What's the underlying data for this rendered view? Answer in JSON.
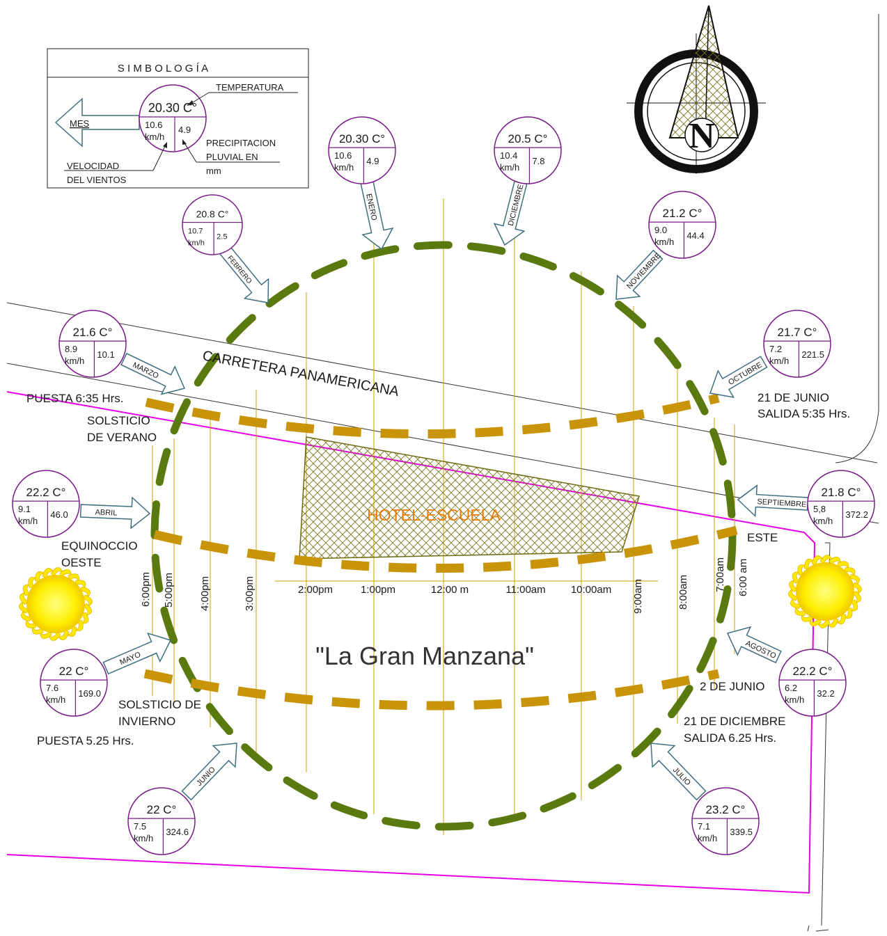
{
  "legend": {
    "title": "S I M B O L O G Í A",
    "temperature_label": "TEMPERATURA",
    "month_label": "MES",
    "precip_label_1": "PRECIPITACION",
    "precip_label_2": "PLUVIAL EN",
    "precip_label_3": "mm",
    "wind_label_1": "VELOCIDAD",
    "wind_label_2": "DEL VIENTOS",
    "sample": {
      "temp": "20.30 C°",
      "wind": "10.6",
      "unit": "km/h",
      "precip": "4.9"
    }
  },
  "months": [
    {
      "name": "ENERO",
      "temp": "20.30 C°",
      "wind": "10.6",
      "unit": "km/h",
      "precip": "4.9"
    },
    {
      "name": "DICIEMBRE",
      "temp": "20.5 C°",
      "wind": "10.4",
      "unit": "km/h",
      "precip": "7.8"
    },
    {
      "name": "FEBRERO",
      "temp": "20.8 C°",
      "wind": "10.7",
      "unit": "km/h",
      "precip": "2.5"
    },
    {
      "name": "NOVIEMBRE",
      "temp": "21.2 C°",
      "wind": "9.0",
      "unit": "km/h",
      "precip": "44.4"
    },
    {
      "name": "MARZO",
      "temp": "21.6 C°",
      "wind": "8.9",
      "unit": "km/h",
      "precip": "10.1"
    },
    {
      "name": "OCTUBRE",
      "temp": "21.7 C°",
      "wind": "7.2",
      "unit": "km/h",
      "precip": "221.5"
    },
    {
      "name": "ABRIL",
      "temp": "22.2 C°",
      "wind": "9.1",
      "unit": "km/h",
      "precip": "46.0"
    },
    {
      "name": "SEPTIEMBRE",
      "temp": "21.8 C°",
      "wind": "5,8",
      "unit": "km/h",
      "precip": "372.2"
    },
    {
      "name": "MAYO",
      "temp": "22 C°",
      "wind": "7.6",
      "unit": "km/h",
      "precip": "169.0"
    },
    {
      "name": "AGOSTO",
      "temp": "22.2 C°",
      "wind": "6.2",
      "unit": "km/h",
      "precip": "32.2"
    },
    {
      "name": "JUNIO",
      "temp": "22 C°",
      "wind": "7.5",
      "unit": "km/h",
      "precip": "324.6"
    },
    {
      "name": "JULIO",
      "temp": "23.2 C°",
      "wind": "7.1",
      "unit": "km/h",
      "precip": "339.5"
    }
  ],
  "road_label": "CARRETERA PANAMERICANA",
  "building_label": "HOTEL-ESCUELA",
  "site_label": "\"La Gran Manzana\"",
  "notes": {
    "puesta_verano": "PUESTA 6:35 Hrs.",
    "solsticio_verano_1": "SOLSTICIO",
    "solsticio_verano_2": "DE VERANO",
    "junio_1": "21 DE JUNIO",
    "junio_2": "SALIDA 5:35 Hrs.",
    "equinoccio_1": "EQUINOCCIO",
    "equinoccio_2": "OESTE",
    "este": "ESTE",
    "solsticio_invierno_1": "SOLSTICIO DE",
    "solsticio_invierno_2": "INVIERNO",
    "puesta_invierno": "PUESTA 5.25  Hrs.",
    "dos_junio": "2 DE JUNIO",
    "diciembre_1": "21 DE DICIEMBRE",
    "diciembre_2": "SALIDA 6.25 Hrs."
  },
  "hours_vertical": [
    "6:00pm",
    "5:00pm",
    "4:00pm",
    "3:00pm",
    "9:00am",
    "8:00am",
    "7:00am",
    "6:00 am"
  ],
  "hours_horizontal": [
    "2:00pm",
    "1:00pm",
    "12:00 m",
    "11:00am",
    "10:00am"
  ],
  "compass_letter": "N",
  "colors": {
    "orbit": "#5a7a10",
    "sunpath": "#c8950a",
    "magenta": "#e600e6",
    "purple": "#7a1a8a",
    "arrow": "#3d6f80",
    "building": "#6e6a10",
    "building_label": "#f07a00",
    "hour_line": "#c8a000"
  }
}
